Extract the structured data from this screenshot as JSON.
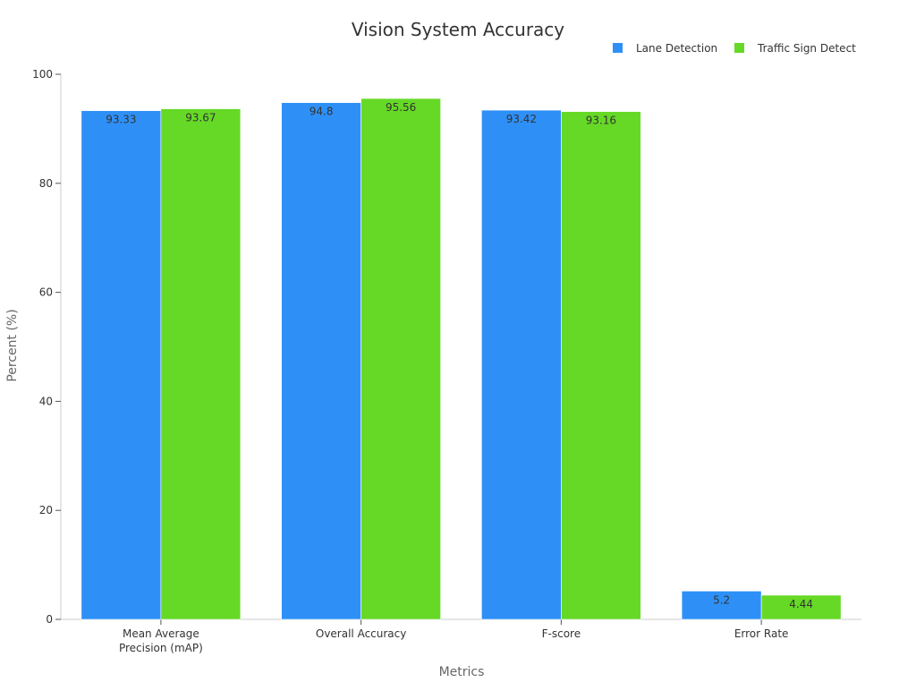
{
  "chart_data": {
    "type": "bar",
    "title": "Vision System Accuracy",
    "xlabel": "Metrics",
    "ylabel": "Percent (%)",
    "ylim": [
      0,
      100
    ],
    "yticks": [
      "0",
      "20",
      "40",
      "60",
      "80",
      "100"
    ],
    "categories": [
      [
        "Mean Average",
        "Precision (mAP)"
      ],
      [
        "Overall Accuracy"
      ],
      [
        "F-score"
      ],
      [
        "Error Rate"
      ]
    ],
    "series": [
      {
        "name": "Lane Detection",
        "color": "#2e90f7",
        "values": [
          93.33,
          94.8,
          93.42,
          5.2
        ],
        "labels": [
          "93.33",
          "94.8",
          "93.42",
          "5.2"
        ]
      },
      {
        "name": "Traffic Sign Detect",
        "color": "#66d926",
        "values": [
          93.67,
          95.56,
          93.16,
          4.44
        ],
        "labels": [
          "93.67",
          "95.56",
          "93.16",
          "4.44"
        ]
      }
    ],
    "legend_position": "top-right",
    "grid": false
  }
}
